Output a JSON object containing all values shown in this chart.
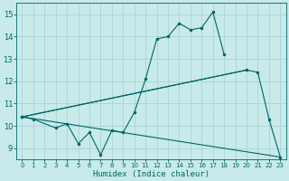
{
  "xlabel": "Humidex (Indice chaleur)",
  "background_color": "#c8eaea",
  "grid_color": "#a8d4d4",
  "line_color": "#006666",
  "xlim": [
    -0.5,
    23.5
  ],
  "ylim": [
    8.5,
    15.5
  ],
  "xticks": [
    0,
    1,
    2,
    3,
    4,
    5,
    6,
    7,
    8,
    9,
    10,
    11,
    12,
    13,
    14,
    15,
    16,
    17,
    18,
    19,
    20,
    21,
    22,
    23
  ],
  "yticks": [
    9,
    10,
    11,
    12,
    13,
    14,
    15
  ],
  "series_main": {
    "x": [
      0,
      1,
      3,
      4,
      5,
      6,
      7,
      8,
      9,
      10,
      11,
      12,
      13,
      14,
      15,
      16,
      17,
      18
    ],
    "y": [
      10.4,
      10.3,
      9.9,
      10.1,
      9.2,
      9.7,
      8.7,
      9.8,
      9.7,
      10.6,
      12.1,
      13.9,
      14.0,
      14.6,
      14.3,
      14.4,
      15.1,
      13.2
    ]
  },
  "series_line_top": {
    "x": [
      0,
      20
    ],
    "y": [
      10.4,
      12.5
    ]
  },
  "series_line_bottom": {
    "x": [
      0,
      23
    ],
    "y": [
      10.4,
      8.6
    ]
  },
  "series_envelope": {
    "x": [
      0,
      20,
      21,
      22,
      23
    ],
    "y": [
      10.4,
      12.5,
      12.4,
      10.3,
      8.6
    ]
  }
}
